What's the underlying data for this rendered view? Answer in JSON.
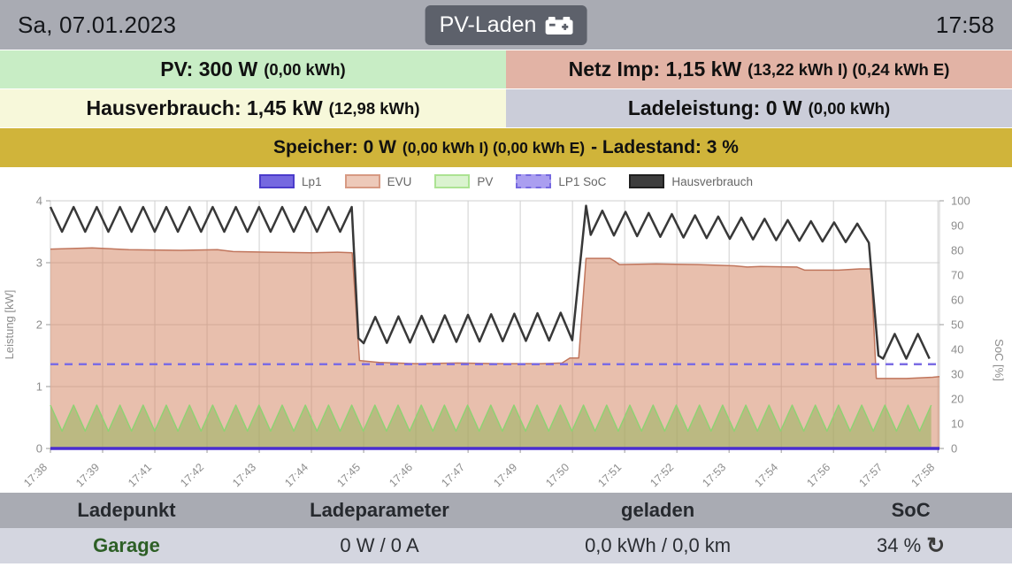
{
  "header": {
    "date": "Sa, 07.01.2023",
    "mode_button": "PV-Laden",
    "time": "17:58"
  },
  "tiles": {
    "pv": {
      "main": "PV: 300 W",
      "detail": "(0,00 kWh)"
    },
    "netz": {
      "main": "Netz Imp: 1,15 kW",
      "detail": "(13,22 kWh I) (0,24 kWh E)"
    },
    "hausverbrauch": {
      "main": "Hausverbrauch: 1,45 kW",
      "detail": "(12,98 kWh)"
    },
    "ladeleistung": {
      "main": "Ladeleistung: 0 W",
      "detail": "(0,00 kWh)"
    },
    "speicher": {
      "main": "Speicher: 0 W",
      "detail": "(0,00 kWh I) (0,00 kWh E)",
      "suffix": "- Ladestand: 3 %"
    }
  },
  "accent_colors": {
    "topbar_gray": "#a9abb3",
    "mode_button_gray": "#5d616b",
    "pv_green": "#c8edc5",
    "grid_salmon": "#e2b3a5",
    "house_yellow": "#f7f8da",
    "charge_lavender": "#cbcdd9",
    "storage_gold": "#d0b43a",
    "table_header_gray": "#a9abb3",
    "table_row_gray": "#d4d6e0",
    "garage_green": "#2d5f26"
  },
  "chart_data": {
    "type": "line",
    "xlabel": "",
    "ylabel_left": "Leistung [kW]",
    "ylabel_right": "SoC [%]",
    "ylim_left": [
      0,
      4
    ],
    "ylim_right": [
      0,
      100
    ],
    "y_ticks_left": [
      0,
      1,
      2,
      3,
      4
    ],
    "y_ticks_right": [
      0,
      10,
      20,
      30,
      40,
      50,
      60,
      70,
      80,
      90,
      100
    ],
    "grid": true,
    "legend_position": "top",
    "x_tick_labels": [
      "17:38",
      "17:39",
      "17:41",
      "17:42",
      "17:43",
      "17:44",
      "17:45",
      "17:46",
      "17:47",
      "17:49",
      "17:50",
      "17:51",
      "17:52",
      "17:53",
      "17:54",
      "17:56",
      "17:57",
      "17:58"
    ],
    "x_range": [
      0,
      17.03
    ],
    "x_unit": "tick-index (one unit per displayed time label)",
    "legend": [
      {
        "label": "Lp1",
        "fill": "#7568e0",
        "border": "#4b3ccb",
        "dash": false
      },
      {
        "label": "EVU",
        "fill": "#edc9b9",
        "border": "#d79a83",
        "dash": false
      },
      {
        "label": "PV",
        "fill": "#daf3cf",
        "border": "#ace393",
        "dash": false
      },
      {
        "label": "LP1 SoC",
        "fill": "#aa9ef0",
        "border": "#7568e0",
        "dash": true
      },
      {
        "label": "Hausverbrauch",
        "fill": "#3d3d3d",
        "border": "#1f1f1f",
        "dash": false
      }
    ],
    "series": [
      {
        "name": "EVU",
        "unit": "kW",
        "area": true,
        "line": "#c0755c",
        "fill": "rgba(214,138,106,0.55)",
        "width": 1.5,
        "segments": [
          {
            "kind": "line",
            "pts": [
              [
                0,
                3.22
              ],
              [
                0.8,
                3.24
              ],
              [
                1.5,
                3.21
              ],
              [
                2.5,
                3.2
              ],
              [
                3.2,
                3.21
              ],
              [
                3.5,
                3.18
              ],
              [
                4.2,
                3.17
              ],
              [
                5.0,
                3.16
              ],
              [
                5.5,
                3.17
              ],
              [
                5.78,
                3.16
              ],
              [
                5.92,
                1.42
              ],
              [
                6.3,
                1.39
              ],
              [
                7.0,
                1.37
              ],
              [
                7.8,
                1.38
              ],
              [
                8.6,
                1.37
              ],
              [
                9.4,
                1.37
              ],
              [
                9.8,
                1.38
              ],
              [
                9.95,
                1.46
              ],
              [
                10.12,
                1.46
              ],
              [
                10.26,
                3.07
              ],
              [
                10.72,
                3.07
              ],
              [
                10.82,
                3.02
              ],
              [
                10.9,
                2.97
              ],
              [
                11.6,
                2.98
              ],
              [
                12.4,
                2.97
              ],
              [
                13.1,
                2.95
              ],
              [
                13.35,
                2.93
              ],
              [
                13.6,
                2.94
              ],
              [
                14.3,
                2.93
              ],
              [
                14.45,
                2.88
              ],
              [
                15.1,
                2.88
              ],
              [
                15.5,
                2.9
              ],
              [
                15.72,
                2.9
              ],
              [
                15.82,
                1.13
              ],
              [
                16.4,
                1.13
              ],
              [
                16.9,
                1.15
              ],
              [
                17.03,
                1.16
              ]
            ]
          }
        ]
      },
      {
        "name": "PV",
        "unit": "kW",
        "area": true,
        "line": "#8fd273",
        "fill": "rgba(150,180,95,0.55)",
        "width": 1.5,
        "segments": [
          {
            "kind": "saw",
            "x0": 0,
            "x1": 17.03,
            "period": 0.444,
            "first": "hi",
            "hi0": 0.7,
            "hi1": 0.7,
            "lo0": 0.28,
            "lo1": 0.28
          }
        ]
      },
      {
        "name": "Lp1",
        "unit": "kW",
        "area": false,
        "line": "#4a2fd0",
        "width": 3.5,
        "segments": [
          {
            "kind": "line",
            "pts": [
              [
                0,
                0.0
              ],
              [
                17.03,
                0.0
              ]
            ]
          }
        ]
      },
      {
        "name": "LP1 SoC",
        "unit": "%",
        "axis": "right",
        "value_percent": 34,
        "area": false,
        "line": "#7b6ce4",
        "width": 2.5,
        "dash": "9 7",
        "segments": [
          {
            "kind": "line",
            "pts": [
              [
                0,
                1.36
              ],
              [
                17.03,
                1.36
              ]
            ]
          }
        ]
      },
      {
        "name": "Hausverbrauch",
        "unit": "kW",
        "area": false,
        "line": "#383838",
        "width": 2.5,
        "segments": [
          {
            "kind": "saw",
            "x0": 0,
            "x1": 5.78,
            "period": 0.444,
            "first": "hi",
            "hi0": 3.9,
            "hi1": 3.9,
            "lo0": 3.5,
            "lo1": 3.5
          },
          {
            "kind": "line",
            "pts": [
              [
                5.9,
                1.78
              ]
            ]
          },
          {
            "kind": "saw",
            "x0": 6.0,
            "x1": 10.12,
            "period": 0.444,
            "first": "lo",
            "hi0": 2.12,
            "hi1": 2.2,
            "lo0": 1.7,
            "lo1": 1.75
          },
          {
            "kind": "line",
            "pts": [
              [
                10.26,
                3.92
              ]
            ]
          },
          {
            "kind": "saw",
            "x0": 10.35,
            "x1": 15.74,
            "period": 0.444,
            "first": "lo",
            "hi0": 3.85,
            "hi1": 3.62,
            "lo0": 3.45,
            "lo1": 3.32
          },
          {
            "kind": "line",
            "pts": [
              [
                15.86,
                1.5
              ]
            ]
          },
          {
            "kind": "saw",
            "x0": 15.95,
            "x1": 17.03,
            "period": 0.444,
            "first": "lo",
            "hi0": 1.85,
            "hi1": 1.85,
            "lo0": 1.45,
            "lo1": 1.45
          }
        ]
      }
    ]
  },
  "table": {
    "headers": [
      "Ladepunkt",
      "Ladeparameter",
      "geladen",
      "SoC"
    ],
    "rows": [
      {
        "ladepunkt": "Garage",
        "ladeparameter": "0 W / 0 A",
        "geladen": "0,0 kWh / 0,0 km",
        "soc": "34 %"
      }
    ],
    "soc_refresh_icon": "↻"
  }
}
